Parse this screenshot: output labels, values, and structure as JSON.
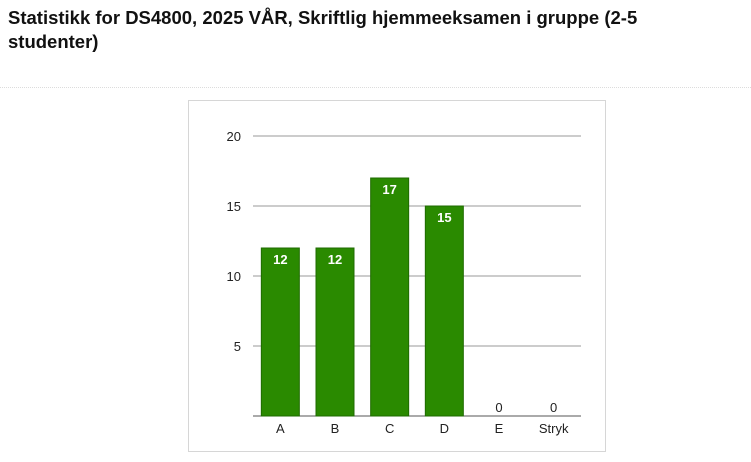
{
  "header": {
    "title": "Statistikk for DS4800, 2025 VÅR, Skriftlig hjemmeeksamen i gruppe (2-5 studenter)"
  },
  "chart_data": {
    "type": "bar",
    "categories": [
      "A",
      "B",
      "C",
      "D",
      "E",
      "Stryk"
    ],
    "values": [
      12,
      12,
      17,
      15,
      0,
      0
    ],
    "ylim": [
      0,
      20
    ],
    "yticks": [
      5,
      10,
      15,
      20
    ],
    "grid": true,
    "legend": "none",
    "colors": {
      "bar": "#2a8a00",
      "bar_border": "#1f6b00",
      "gridline": "#9a9a9a",
      "axis": "#555555"
    }
  }
}
